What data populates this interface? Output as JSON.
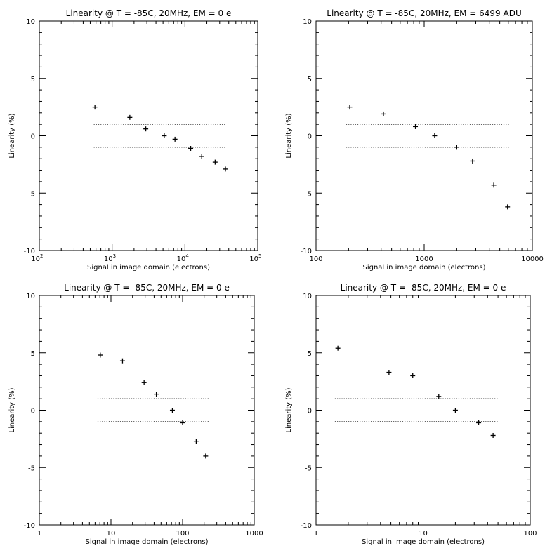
{
  "chart_data": [
    {
      "type": "scatter",
      "title": "Linearity @ T = -85C, 20MHz, EM = 0 e",
      "xlabel": "Signal in image domain (electrons)",
      "ylabel": "Linearity (%)",
      "xscale": "log",
      "tick_format": "power",
      "xlim": [
        100,
        100000
      ],
      "ylim": [
        -10,
        10
      ],
      "xticks": [
        {
          "value": 100,
          "base": "10",
          "exp": "2"
        },
        {
          "value": 1000,
          "base": "10",
          "exp": "3"
        },
        {
          "value": 10000,
          "base": "10",
          "exp": "4"
        },
        {
          "value": 100000,
          "base": "10",
          "exp": "5"
        }
      ],
      "yticks": [
        {
          "value": 10,
          "label": "10"
        },
        {
          "value": 5,
          "label": "5"
        },
        {
          "value": 0,
          "label": "0"
        },
        {
          "value": -5,
          "label": "-5"
        },
        {
          "value": -10,
          "label": "-10"
        }
      ],
      "reference_lines": [
        1,
        -1
      ],
      "reference_xrange": [
        560,
        37000
      ],
      "points": [
        {
          "x": 580,
          "y": 2.5
        },
        {
          "x": 1750,
          "y": 1.6
        },
        {
          "x": 2900,
          "y": 0.6
        },
        {
          "x": 5200,
          "y": 0.0
        },
        {
          "x": 7300,
          "y": -0.3
        },
        {
          "x": 12000,
          "y": -1.1
        },
        {
          "x": 17000,
          "y": -1.8
        },
        {
          "x": 26000,
          "y": -2.3
        },
        {
          "x": 36000,
          "y": -2.9
        }
      ]
    },
    {
      "type": "scatter",
      "title": "Linearity @ T = -85C, 20MHz, EM = 6499 ADU",
      "xlabel": "Signal in image domain (electrons)",
      "ylabel": "Linearity (%)",
      "xscale": "log",
      "tick_format": "plain",
      "xlim": [
        100,
        10000
      ],
      "ylim": [
        -10,
        10
      ],
      "xticks": [
        {
          "value": 100,
          "label": "100"
        },
        {
          "value": 1000,
          "label": "1000"
        },
        {
          "value": 10000,
          "label": "10000"
        }
      ],
      "yticks": [
        {
          "value": 10,
          "label": "10"
        },
        {
          "value": 5,
          "label": "5"
        },
        {
          "value": 0,
          "label": "0"
        },
        {
          "value": -5,
          "label": "-5"
        },
        {
          "value": -10,
          "label": "-10"
        }
      ],
      "reference_lines": [
        1,
        -1
      ],
      "reference_xrange": [
        190,
        6200
      ],
      "points": [
        {
          "x": 205,
          "y": 2.5
        },
        {
          "x": 420,
          "y": 1.9
        },
        {
          "x": 830,
          "y": 0.8
        },
        {
          "x": 1250,
          "y": 0.0
        },
        {
          "x": 2000,
          "y": -1.0
        },
        {
          "x": 2800,
          "y": -2.2
        },
        {
          "x": 4400,
          "y": -4.3
        },
        {
          "x": 5900,
          "y": -6.2
        }
      ]
    },
    {
      "type": "scatter",
      "title": "Linearity @ T = -85C, 20MHz, EM = 0 e",
      "xlabel": "Signal in image domain (electrons)",
      "ylabel": "Linearity (%)",
      "xscale": "log",
      "tick_format": "plain",
      "xlim": [
        1,
        1000
      ],
      "ylim": [
        -10,
        10
      ],
      "xticks": [
        {
          "value": 1,
          "label": "1"
        },
        {
          "value": 10,
          "label": "10"
        },
        {
          "value": 100,
          "label": "100"
        },
        {
          "value": 1000,
          "label": "1000"
        }
      ],
      "yticks": [
        {
          "value": 10,
          "label": "10"
        },
        {
          "value": 5,
          "label": "5"
        },
        {
          "value": 0,
          "label": "0"
        },
        {
          "value": -5,
          "label": "-5"
        },
        {
          "value": -10,
          "label": "-10"
        }
      ],
      "reference_lines": [
        1,
        -1
      ],
      "reference_xrange": [
        6.5,
        240
      ],
      "points": [
        {
          "x": 7.1,
          "y": 4.8
        },
        {
          "x": 14.5,
          "y": 4.3
        },
        {
          "x": 29,
          "y": 2.4
        },
        {
          "x": 43,
          "y": 1.4
        },
        {
          "x": 72,
          "y": 0.0
        },
        {
          "x": 100,
          "y": -1.1
        },
        {
          "x": 155,
          "y": -2.7
        },
        {
          "x": 210,
          "y": -4.0
        }
      ]
    },
    {
      "type": "scatter",
      "title": "Linearity @ T = -85C, 20MHz, EM = 0 e",
      "xlabel": "Signal in image domain (electrons)",
      "ylabel": "Linearity (%)",
      "xscale": "log",
      "tick_format": "plain",
      "xlim": [
        1,
        100
      ],
      "ylim": [
        -10,
        10
      ],
      "xticks": [
        {
          "value": 1,
          "label": "1"
        },
        {
          "value": 10,
          "label": "10"
        },
        {
          "value": 100,
          "label": "100"
        }
      ],
      "yticks": [
        {
          "value": 10,
          "label": "10"
        },
        {
          "value": 5,
          "label": "5"
        },
        {
          "value": 0,
          "label": "0"
        },
        {
          "value": -5,
          "label": "-5"
        },
        {
          "value": -10,
          "label": "-10"
        }
      ],
      "reference_lines": [
        1,
        -1
      ],
      "reference_xrange": [
        1.5,
        50
      ],
      "points": [
        {
          "x": 1.6,
          "y": 5.4
        },
        {
          "x": 4.8,
          "y": 3.3
        },
        {
          "x": 8.0,
          "y": 3.0
        },
        {
          "x": 14,
          "y": 1.2
        },
        {
          "x": 20,
          "y": 0.0
        },
        {
          "x": 33,
          "y": -1.1
        },
        {
          "x": 45,
          "y": -2.2
        }
      ]
    }
  ]
}
